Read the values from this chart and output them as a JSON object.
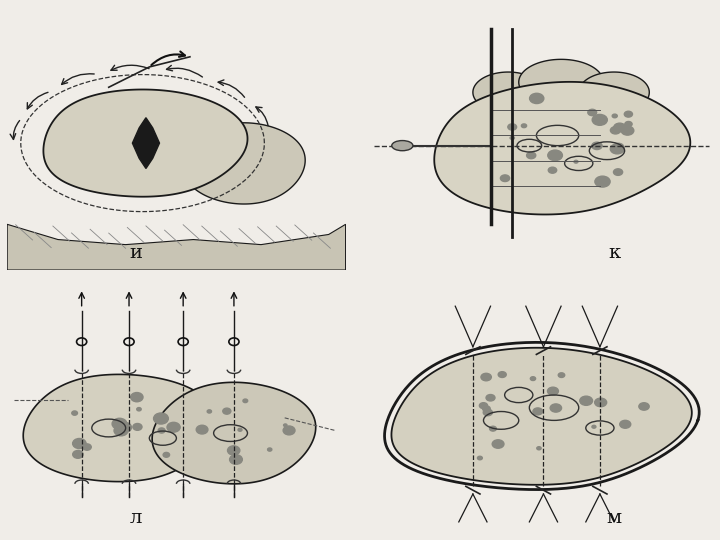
{
  "background_color": "#f0ede8",
  "panel_labels": [
    "и",
    "к",
    "л",
    "м"
  ],
  "line_color": "#1a1a1a",
  "organ_fill": "#d4d0c0",
  "organ_fill2": "#ccc8b8",
  "dark_fill": "#1a1a1a",
  "font_size_label": 14
}
